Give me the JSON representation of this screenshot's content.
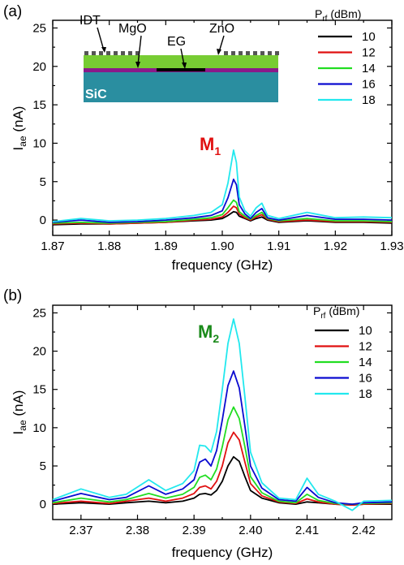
{
  "colors": {
    "p10": "#000000",
    "p12": "#e01010",
    "p14": "#22dd22",
    "p16": "#0a0ad0",
    "p18": "#22e8ee",
    "substrate": "#2a8ea0",
    "zno": "#77cc33",
    "mgo": "#8a1a8a",
    "idt": "#555555",
    "eg": "#000000",
    "m1": "#e01010",
    "m2": "#1a8a1a"
  },
  "inset": {
    "idt": "IDT",
    "mgo": "MgO",
    "eg": "EG",
    "zno": "ZnO",
    "sic": "SiC"
  },
  "chart_data": [
    {
      "type": "line",
      "panel": "(a)",
      "xlabel": "frequency (GHz)",
      "ylabel": "I",
      "ylabel_sub": "ae",
      "ylabel_unit": " (nA)",
      "xlim": [
        1.87,
        1.93
      ],
      "ylim": [
        -2,
        26
      ],
      "xticks": [
        "1.87",
        "1.88",
        "1.89",
        "1.90",
        "1.91",
        "1.92",
        "1.93"
      ],
      "yticks": [
        "0",
        "5",
        "10",
        "15",
        "20",
        "25"
      ],
      "legend_title_main": "P",
      "legend_title_sub": "rf",
      "legend_title_unit": " (dBm)",
      "peak_label_main": "M",
      "peak_label_sub": "1",
      "series": [
        {
          "name": "10",
          "colorKey": "p10",
          "x": [
            1.87,
            1.875,
            1.88,
            1.885,
            1.89,
            1.895,
            1.898,
            1.9,
            1.901,
            1.902,
            1.9025,
            1.903,
            1.904,
            1.905,
            1.906,
            1.907,
            1.908,
            1.91,
            1.915,
            1.92,
            1.925,
            1.93
          ],
          "y": [
            -0.6,
            -0.5,
            -0.5,
            -0.4,
            -0.3,
            -0.1,
            0,
            0.2,
            0.6,
            1.1,
            1.0,
            0.5,
            0.2,
            -0.1,
            0.2,
            0.4,
            0,
            -0.3,
            -0.1,
            -0.3,
            -0.3,
            -0.4
          ]
        },
        {
          "name": "12",
          "colorKey": "p12",
          "x": [
            1.87,
            1.875,
            1.88,
            1.885,
            1.89,
            1.895,
            1.898,
            1.9,
            1.901,
            1.902,
            1.9025,
            1.903,
            1.904,
            1.905,
            1.906,
            1.907,
            1.908,
            1.91,
            1.915,
            1.92,
            1.925,
            1.93
          ],
          "y": [
            -0.5,
            -0.4,
            -0.5,
            -0.4,
            -0.3,
            0,
            0.1,
            0.4,
            1.0,
            1.8,
            1.6,
            0.8,
            0.3,
            0,
            0.4,
            0.7,
            0.1,
            -0.2,
            0,
            -0.2,
            -0.2,
            -0.3
          ]
        },
        {
          "name": "14",
          "colorKey": "p14",
          "x": [
            1.87,
            1.875,
            1.88,
            1.885,
            1.89,
            1.895,
            1.898,
            1.9,
            1.901,
            1.902,
            1.9025,
            1.903,
            1.904,
            1.905,
            1.906,
            1.907,
            1.908,
            1.91,
            1.915,
            1.92,
            1.925,
            1.93
          ],
          "y": [
            -0.4,
            -0.3,
            -0.4,
            -0.3,
            -0.2,
            0.1,
            0.3,
            0.7,
            1.6,
            2.6,
            2.3,
            1.1,
            0.5,
            0.1,
            0.6,
            1.0,
            0.2,
            -0.1,
            0.2,
            -0.1,
            -0.1,
            -0.2
          ]
        },
        {
          "name": "16",
          "colorKey": "p16",
          "x": [
            1.87,
            1.875,
            1.88,
            1.885,
            1.89,
            1.895,
            1.898,
            1.9,
            1.901,
            1.902,
            1.9025,
            1.903,
            1.904,
            1.905,
            1.906,
            1.907,
            1.908,
            1.91,
            1.915,
            1.92,
            1.925,
            1.93
          ],
          "y": [
            -0.3,
            0,
            -0.3,
            -0.2,
            0,
            0.3,
            0.6,
            1.2,
            2.9,
            5.3,
            4.6,
            2.0,
            0.8,
            0.2,
            1.0,
            1.5,
            0.3,
            0,
            0.6,
            0.1,
            0.1,
            0
          ]
        },
        {
          "name": "18",
          "colorKey": "p18",
          "x": [
            1.87,
            1.875,
            1.88,
            1.885,
            1.89,
            1.895,
            1.898,
            1.9,
            1.901,
            1.902,
            1.9025,
            1.903,
            1.904,
            1.905,
            1.906,
            1.907,
            1.908,
            1.91,
            1.915,
            1.92,
            1.925,
            1.93
          ],
          "y": [
            -0.2,
            0.2,
            -0.1,
            0,
            0.2,
            0.6,
            1.0,
            2.0,
            4.8,
            9.1,
            7.5,
            3.0,
            1.2,
            0.5,
            1.6,
            2.2,
            0.6,
            0.2,
            1.0,
            0.3,
            0.4,
            0.3
          ]
        }
      ]
    },
    {
      "type": "line",
      "panel": "(b)",
      "xlabel": "frequency (GHz)",
      "ylabel": "I",
      "ylabel_sub": "ae",
      "ylabel_unit": " (nA)",
      "xlim": [
        2.365,
        2.425
      ],
      "ylim": [
        -2,
        26
      ],
      "xticks": [
        "2.37",
        "2.38",
        "2.39",
        "2.40",
        "2.41",
        "2.42"
      ],
      "yticks": [
        "0",
        "5",
        "10",
        "15",
        "20",
        "25"
      ],
      "legend_title_main": "P",
      "legend_title_sub": "rf",
      "legend_title_unit": " (dBm)",
      "peak_label_main": "M",
      "peak_label_sub": "2",
      "series": [
        {
          "name": "10",
          "colorKey": "p10",
          "x": [
            2.365,
            2.37,
            2.375,
            2.378,
            2.382,
            2.385,
            2.388,
            2.39,
            2.391,
            2.392,
            2.393,
            2.394,
            2.395,
            2.396,
            2.397,
            2.398,
            2.399,
            2.4,
            2.402,
            2.405,
            2.408,
            2.41,
            2.412,
            2.415,
            2.418,
            2.42,
            2.425
          ],
          "y": [
            0,
            0.2,
            0,
            0.2,
            0.4,
            0.2,
            0.4,
            0.8,
            1.3,
            1.4,
            1.2,
            1.8,
            3.0,
            5.0,
            6.2,
            5.6,
            3.6,
            1.8,
            0.8,
            0.2,
            0,
            0.3,
            0.2,
            0,
            -0.1,
            0,
            0
          ]
        },
        {
          "name": "12",
          "colorKey": "p12",
          "x": [
            2.365,
            2.37,
            2.375,
            2.378,
            2.382,
            2.385,
            2.388,
            2.39,
            2.391,
            2.392,
            2.393,
            2.394,
            2.395,
            2.396,
            2.397,
            2.398,
            2.399,
            2.4,
            2.402,
            2.405,
            2.408,
            2.41,
            2.412,
            2.415,
            2.418,
            2.42,
            2.425
          ],
          "y": [
            0.1,
            0.4,
            0.1,
            0.4,
            0.8,
            0.4,
            0.8,
            1.4,
            2.2,
            2.4,
            2.0,
            3.0,
            5.0,
            8.0,
            9.4,
            8.4,
            5.5,
            2.7,
            1.1,
            0.3,
            0.1,
            0.7,
            0.3,
            0,
            -0.1,
            0,
            0.1
          ]
        },
        {
          "name": "14",
          "colorKey": "p14",
          "x": [
            2.365,
            2.37,
            2.375,
            2.378,
            2.382,
            2.385,
            2.388,
            2.39,
            2.391,
            2.392,
            2.393,
            2.394,
            2.395,
            2.396,
            2.397,
            2.398,
            2.399,
            2.4,
            2.402,
            2.405,
            2.408,
            2.41,
            2.412,
            2.415,
            2.418,
            2.42,
            2.425
          ],
          "y": [
            0.2,
            0.8,
            0.3,
            0.6,
            1.4,
            0.8,
            1.3,
            2.2,
            3.5,
            3.8,
            3.2,
            4.6,
            7.5,
            11.0,
            12.7,
            11.2,
            7.5,
            3.6,
            1.5,
            0.4,
            0.2,
            1.3,
            0.5,
            0.1,
            0,
            0.1,
            0.2
          ]
        },
        {
          "name": "16",
          "colorKey": "p16",
          "x": [
            2.365,
            2.37,
            2.375,
            2.378,
            2.382,
            2.385,
            2.388,
            2.39,
            2.391,
            2.392,
            2.393,
            2.394,
            2.395,
            2.396,
            2.397,
            2.398,
            2.399,
            2.4,
            2.402,
            2.405,
            2.408,
            2.41,
            2.412,
            2.415,
            2.418,
            2.42,
            2.425
          ],
          "y": [
            0.4,
            1.4,
            0.6,
            0.9,
            2.4,
            1.3,
            2.0,
            3.2,
            5.5,
            5.9,
            5.0,
            7.0,
            11.0,
            15.5,
            17.4,
            15.2,
            10.2,
            5.0,
            2.1,
            0.6,
            0.4,
            2.2,
            0.9,
            0.2,
            0,
            0.2,
            0.3
          ]
        },
        {
          "name": "18",
          "colorKey": "p18",
          "x": [
            2.365,
            2.37,
            2.375,
            2.378,
            2.382,
            2.385,
            2.388,
            2.39,
            2.391,
            2.392,
            2.393,
            2.394,
            2.395,
            2.396,
            2.397,
            2.398,
            2.399,
            2.4,
            2.402,
            2.405,
            2.408,
            2.41,
            2.412,
            2.415,
            2.418,
            2.42,
            2.425
          ],
          "y": [
            0.6,
            2.0,
            0.9,
            1.3,
            3.2,
            1.8,
            2.7,
            4.4,
            7.7,
            7.6,
            6.8,
            9.5,
            15.0,
            21.0,
            24.2,
            21.0,
            14.0,
            6.8,
            2.8,
            0.8,
            0.6,
            3.4,
            1.3,
            0.4,
            -0.8,
            0.4,
            0.5
          ]
        }
      ]
    }
  ]
}
